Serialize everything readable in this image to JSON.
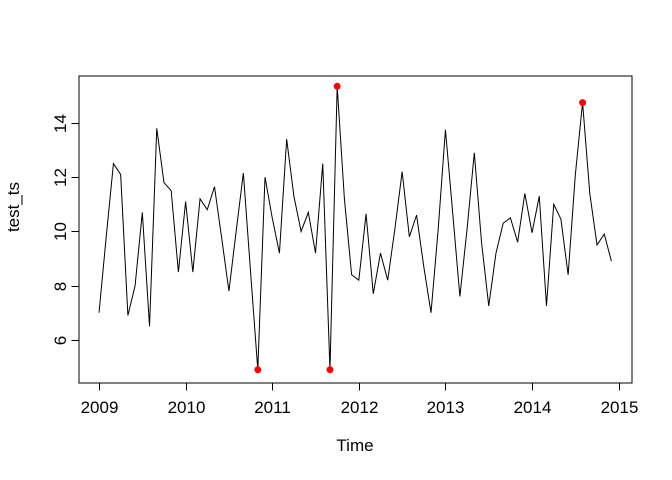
{
  "figure": {
    "background_color": "#ffffff",
    "frame_color": "#000000"
  },
  "chart_data": {
    "type": "line",
    "title": "",
    "xlabel": "Time",
    "ylabel": "test_ts",
    "x_tick_labels": [
      "2009",
      "2010",
      "2011",
      "2012",
      "2013",
      "2014",
      "2015"
    ],
    "x_tick_values": [
      2009,
      2010,
      2011,
      2012,
      2013,
      2014,
      2015
    ],
    "y_tick_labels": [
      "6",
      "8",
      "10",
      "12",
      "14"
    ],
    "y_tick_values": [
      6,
      8,
      10,
      12,
      14
    ],
    "xlim": [
      2008.769,
      2015.154
    ],
    "ylim": [
      4.41,
      15.73
    ],
    "grid": false,
    "legend": "none",
    "line_color": "#000000",
    "outlier_color": "#ff0000",
    "series_start_year": 2009,
    "points_per_year": 12,
    "x_start": 2009.0,
    "x_step": 0.0833333,
    "values": [
      7.0,
      9.8,
      12.5,
      12.1,
      6.9,
      8.0,
      10.7,
      6.5,
      13.8,
      11.8,
      11.5,
      8.5,
      11.1,
      8.5,
      11.2,
      10.8,
      11.65,
      9.75,
      7.8,
      10.0,
      12.15,
      8.5,
      4.9,
      12.0,
      10.5,
      9.2,
      13.4,
      11.3,
      10.0,
      10.7,
      9.2,
      12.5,
      4.9,
      15.35,
      11.2,
      8.4,
      8.2,
      10.65,
      7.7,
      9.2,
      8.2,
      10.1,
      12.2,
      9.8,
      10.6,
      8.7,
      7.0,
      10.1,
      13.75,
      10.7,
      7.6,
      10.1,
      12.9,
      9.6,
      7.25,
      9.2,
      10.3,
      10.5,
      9.6,
      11.4,
      9.95,
      11.3,
      7.25,
      11.0,
      10.45,
      8.4,
      12.1,
      14.75,
      11.4,
      9.5,
      9.9,
      8.9
    ],
    "outliers": [
      {
        "label": "Nov 2010",
        "t": 2010.8333,
        "value": 4.9
      },
      {
        "label": "Sep 2011",
        "t": 2011.6667,
        "value": 4.9
      },
      {
        "label": "Oct 2011",
        "t": 2011.75,
        "value": 15.35
      },
      {
        "label": "Aug 2014",
        "t": 2014.5833,
        "value": 14.75
      }
    ]
  }
}
